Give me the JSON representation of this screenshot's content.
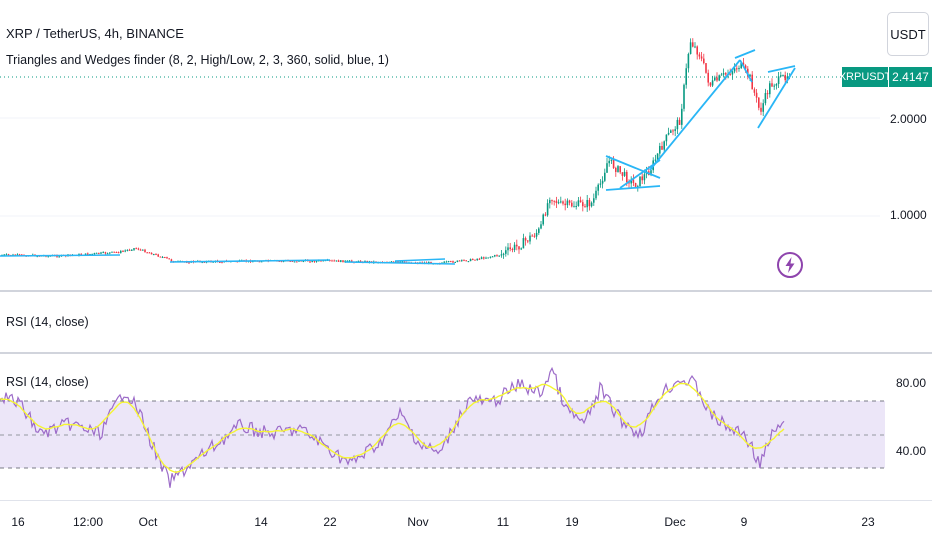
{
  "header": {
    "symbol_title": "XRP / TetherUS, 4h, BINANCE",
    "indicator_legend": "Triangles and Wedges finder (8, 2, High/Low, 2, 3, 360, solid, blue, 1)",
    "currency_button": "USDT"
  },
  "price_axis": {
    "labels": [
      "2.0000",
      "1.0000"
    ],
    "symbol_tag": "XRPUSDT",
    "last_price": "2.4147"
  },
  "rsi_pane_1": {
    "legend": "RSI (14, close)"
  },
  "rsi_pane_2": {
    "legend": "RSI (14, close)",
    "axis_labels": [
      "80.00",
      "40.00"
    ]
  },
  "time_axis": {
    "labels": [
      "16",
      "12:00",
      "Oct",
      "14",
      "22",
      "Nov",
      "11",
      "19",
      "Dec",
      "9",
      "23"
    ]
  },
  "colors": {
    "up": "#089981",
    "down": "#f23645",
    "pattern_line": "#29b6f6",
    "rsi_line": "#9c6bc8",
    "rsi_ma": "#f5f532",
    "rsi_band": "#ece6f8",
    "lightning": "#8e44ad"
  },
  "icons": {
    "lightning": "lightning-icon"
  }
}
